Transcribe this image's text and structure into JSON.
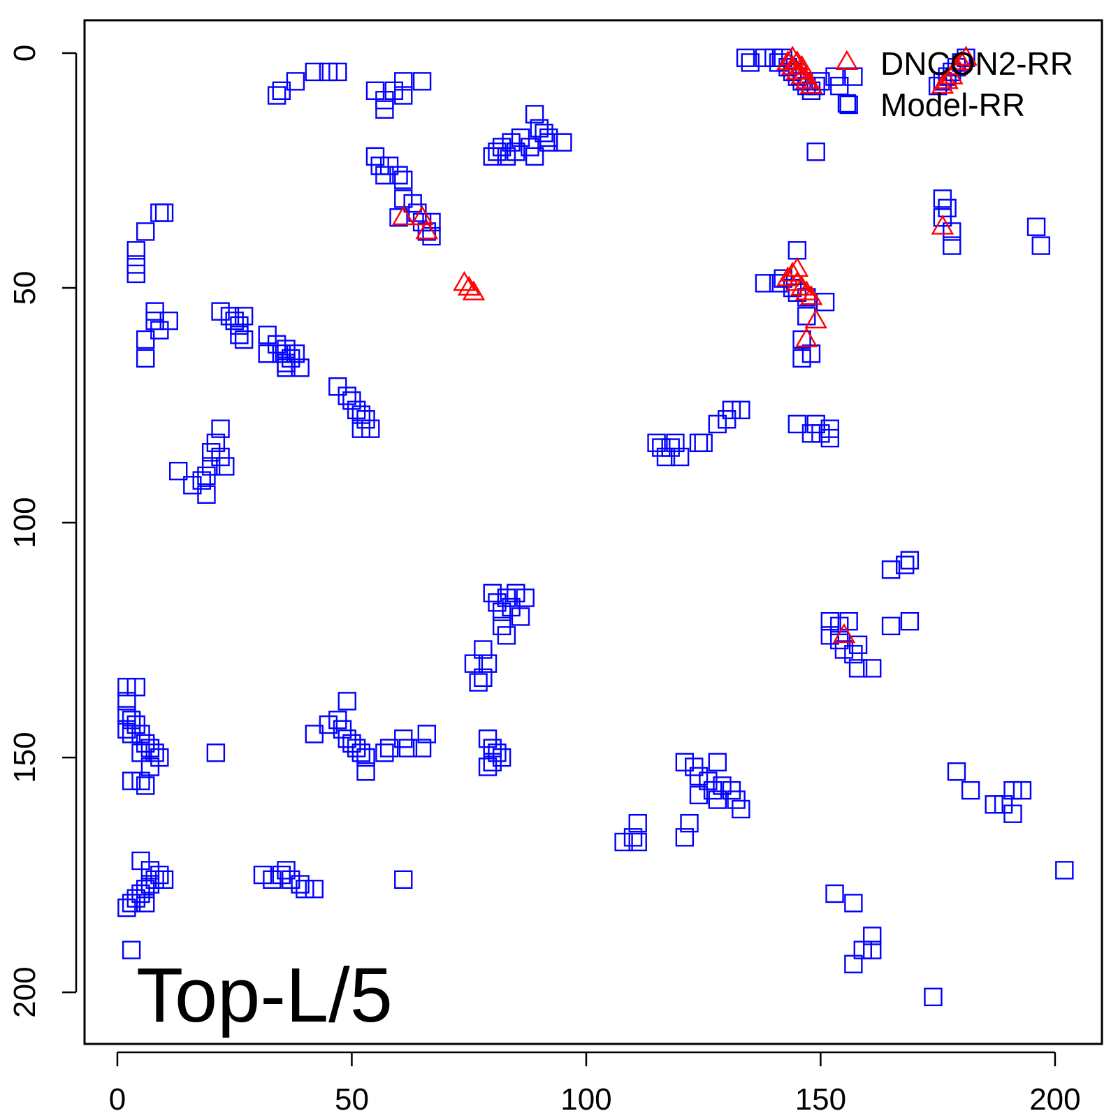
{
  "chart_data": {
    "type": "scatter",
    "title": "",
    "xlabel": "",
    "ylabel": "",
    "xlim": [
      -7,
      210
    ],
    "ylim": [
      -7,
      211
    ],
    "y_reversed": true,
    "xticks": [
      0,
      50,
      100,
      150,
      200
    ],
    "yticks": [
      0,
      50,
      100,
      150,
      200
    ],
    "grid": false,
    "legend_position": "top-right",
    "annotation": "Top-L/5",
    "series": [
      {
        "name": "DNCON2-RR",
        "marker": "triangle",
        "color": "#ff0000",
        "points": [
          [
            143,
            2
          ],
          [
            144,
            1
          ],
          [
            144,
            3
          ],
          [
            145,
            4
          ],
          [
            146,
            5
          ],
          [
            146,
            3
          ],
          [
            147,
            6
          ],
          [
            148,
            7
          ],
          [
            145,
            2
          ],
          [
            177,
            6
          ],
          [
            178,
            5
          ],
          [
            179,
            3
          ],
          [
            180,
            2
          ],
          [
            181,
            1
          ],
          [
            176,
            7
          ],
          [
            61,
            35
          ],
          [
            65,
            35
          ],
          [
            66,
            38
          ],
          [
            74,
            49
          ],
          [
            75,
            50
          ],
          [
            76,
            51
          ],
          [
            176,
            37
          ],
          [
            143,
            48
          ],
          [
            144,
            47
          ],
          [
            145,
            49
          ],
          [
            146,
            50
          ],
          [
            147,
            51
          ],
          [
            148,
            52
          ],
          [
            145,
            46
          ],
          [
            149,
            57
          ],
          [
            147,
            61
          ],
          [
            155,
            124
          ]
        ]
      },
      {
        "name": "Model-RR",
        "marker": "square",
        "color": "#0000ff",
        "points": [
          [
            134,
            1
          ],
          [
            135,
            2
          ],
          [
            138,
            1
          ],
          [
            140,
            1
          ],
          [
            141,
            2
          ],
          [
            142,
            1
          ],
          [
            143,
            3
          ],
          [
            144,
            4
          ],
          [
            145,
            5
          ],
          [
            146,
            6
          ],
          [
            147,
            7
          ],
          [
            148,
            8
          ],
          [
            149,
            7
          ],
          [
            150,
            6
          ],
          [
            153,
            5
          ],
          [
            154,
            7
          ],
          [
            157,
            5
          ],
          [
            156,
            11
          ],
          [
            149,
            21
          ],
          [
            175,
            7
          ],
          [
            176,
            6
          ],
          [
            177,
            5
          ],
          [
            178,
            4
          ],
          [
            179,
            3
          ],
          [
            180,
            2
          ],
          [
            181,
            1
          ],
          [
            34,
            9
          ],
          [
            35,
            8
          ],
          [
            38,
            6
          ],
          [
            42,
            4
          ],
          [
            45,
            4
          ],
          [
            47,
            4
          ],
          [
            55,
            8
          ],
          [
            57,
            10
          ],
          [
            57,
            12
          ],
          [
            59,
            8
          ],
          [
            61,
            6
          ],
          [
            61,
            9
          ],
          [
            65,
            6
          ],
          [
            55,
            22
          ],
          [
            56,
            24
          ],
          [
            57,
            26
          ],
          [
            58,
            24
          ],
          [
            60,
            26
          ],
          [
            61,
            27
          ],
          [
            61,
            31
          ],
          [
            63,
            32
          ],
          [
            64,
            34
          ],
          [
            65,
            36
          ],
          [
            66,
            38
          ],
          [
            67,
            36
          ],
          [
            67,
            39
          ],
          [
            60,
            35
          ],
          [
            80,
            22
          ],
          [
            81,
            21
          ],
          [
            82,
            20
          ],
          [
            83,
            22
          ],
          [
            84,
            19
          ],
          [
            85,
            21
          ],
          [
            86,
            18
          ],
          [
            88,
            20
          ],
          [
            89,
            22
          ],
          [
            89,
            13
          ],
          [
            90,
            16
          ],
          [
            91,
            17
          ],
          [
            92,
            19
          ],
          [
            92,
            18
          ],
          [
            95,
            19
          ],
          [
            176,
            31
          ],
          [
            177,
            33
          ],
          [
            176,
            35
          ],
          [
            178,
            38
          ],
          [
            178,
            41
          ],
          [
            196,
            37
          ],
          [
            197,
            41
          ],
          [
            9,
            34
          ],
          [
            10,
            34
          ],
          [
            6,
            38
          ],
          [
            4,
            42
          ],
          [
            4,
            45
          ],
          [
            4,
            47
          ],
          [
            8,
            55
          ],
          [
            8,
            57
          ],
          [
            9,
            59
          ],
          [
            6,
            61
          ],
          [
            6,
            65
          ],
          [
            11,
            57
          ],
          [
            22,
            55
          ],
          [
            24,
            56
          ],
          [
            25,
            57
          ],
          [
            26,
            58
          ],
          [
            27,
            56
          ],
          [
            26,
            60
          ],
          [
            27,
            61
          ],
          [
            32,
            60
          ],
          [
            34,
            62
          ],
          [
            32,
            64
          ],
          [
            35,
            64
          ],
          [
            36,
            63
          ],
          [
            36,
            66
          ],
          [
            37,
            65
          ],
          [
            36,
            67
          ],
          [
            38,
            64
          ],
          [
            39,
            67
          ],
          [
            47,
            71
          ],
          [
            49,
            73
          ],
          [
            50,
            74
          ],
          [
            51,
            76
          ],
          [
            52,
            77
          ],
          [
            53,
            78
          ],
          [
            54,
            80
          ],
          [
            52,
            80
          ],
          [
            22,
            80
          ],
          [
            21,
            83
          ],
          [
            20,
            85
          ],
          [
            22,
            86
          ],
          [
            20,
            88
          ],
          [
            19,
            90
          ],
          [
            18,
            91
          ],
          [
            16,
            92
          ],
          [
            19,
            94
          ],
          [
            13,
            89
          ],
          [
            23,
            88
          ],
          [
            145,
            42
          ],
          [
            138,
            49
          ],
          [
            141,
            49
          ],
          [
            142,
            48
          ],
          [
            144,
            50
          ],
          [
            145,
            51
          ],
          [
            147,
            52
          ],
          [
            151,
            53
          ],
          [
            147,
            56
          ],
          [
            146,
            61
          ],
          [
            146,
            65
          ],
          [
            148,
            64
          ],
          [
            115,
            83
          ],
          [
            116,
            84
          ],
          [
            117,
            86
          ],
          [
            118,
            84
          ],
          [
            119,
            83
          ],
          [
            120,
            86
          ],
          [
            124,
            83
          ],
          [
            125,
            83
          ],
          [
            128,
            79
          ],
          [
            130,
            78
          ],
          [
            131,
            76
          ],
          [
            133,
            76
          ],
          [
            149,
            79
          ],
          [
            148,
            81
          ],
          [
            150,
            81
          ],
          [
            152,
            80
          ],
          [
            152,
            82
          ],
          [
            145,
            79
          ],
          [
            165,
            110
          ],
          [
            168,
            109
          ],
          [
            169,
            108
          ],
          [
            80,
            115
          ],
          [
            81,
            117
          ],
          [
            82,
            119
          ],
          [
            83,
            116
          ],
          [
            84,
            118
          ],
          [
            85,
            115
          ],
          [
            86,
            120
          ],
          [
            87,
            116
          ],
          [
            82,
            122
          ],
          [
            83,
            124
          ],
          [
            78,
            127
          ],
          [
            79,
            130
          ],
          [
            78,
            133
          ],
          [
            76,
            130
          ],
          [
            77,
            134
          ],
          [
            152,
            121
          ],
          [
            154,
            122
          ],
          [
            156,
            121
          ],
          [
            152,
            124
          ],
          [
            154,
            125
          ],
          [
            155,
            127
          ],
          [
            158,
            126
          ],
          [
            157,
            128
          ],
          [
            158,
            131
          ],
          [
            161,
            131
          ],
          [
            165,
            122
          ],
          [
            169,
            121
          ],
          [
            2,
            135
          ],
          [
            4,
            135
          ],
          [
            2,
            138
          ],
          [
            2,
            141
          ],
          [
            3,
            142
          ],
          [
            2,
            144
          ],
          [
            3,
            145
          ],
          [
            4,
            143
          ],
          [
            5,
            145
          ],
          [
            6,
            147
          ],
          [
            7,
            148
          ],
          [
            8,
            149
          ],
          [
            9,
            150
          ],
          [
            5,
            149
          ],
          [
            7,
            152
          ],
          [
            5,
            155
          ],
          [
            6,
            156
          ],
          [
            3,
            155
          ],
          [
            21,
            149
          ],
          [
            42,
            145
          ],
          [
            45,
            143
          ],
          [
            47,
            142
          ],
          [
            48,
            144
          ],
          [
            49,
            146
          ],
          [
            50,
            147
          ],
          [
            51,
            148
          ],
          [
            52,
            149
          ],
          [
            49,
            138
          ],
          [
            53,
            150
          ],
          [
            53,
            153
          ],
          [
            57,
            149
          ],
          [
            58,
            148
          ],
          [
            61,
            146
          ],
          [
            62,
            148
          ],
          [
            65,
            148
          ],
          [
            66,
            145
          ],
          [
            79,
            146
          ],
          [
            80,
            148
          ],
          [
            81,
            149
          ],
          [
            82,
            150
          ],
          [
            80,
            151
          ],
          [
            79,
            152
          ],
          [
            121,
            151
          ],
          [
            123,
            152
          ],
          [
            124,
            154
          ],
          [
            126,
            155
          ],
          [
            127,
            157
          ],
          [
            128,
            159
          ],
          [
            129,
            156
          ],
          [
            131,
            157
          ],
          [
            132,
            159
          ],
          [
            133,
            161
          ],
          [
            124,
            158
          ],
          [
            128,
            151
          ],
          [
            108,
            168
          ],
          [
            110,
            167
          ],
          [
            111,
            168
          ],
          [
            111,
            164
          ],
          [
            121,
            167
          ],
          [
            122,
            164
          ],
          [
            179,
            153
          ],
          [
            182,
            157
          ],
          [
            187,
            160
          ],
          [
            189,
            160
          ],
          [
            191,
            157
          ],
          [
            191,
            162
          ],
          [
            193,
            157
          ],
          [
            2,
            182
          ],
          [
            3,
            181
          ],
          [
            4,
            180
          ],
          [
            5,
            179
          ],
          [
            6,
            178
          ],
          [
            7,
            177
          ],
          [
            8,
            176
          ],
          [
            9,
            175
          ],
          [
            6,
            181
          ],
          [
            7,
            174
          ],
          [
            5,
            172
          ],
          [
            10,
            176
          ],
          [
            3,
            191
          ],
          [
            31,
            175
          ],
          [
            33,
            176
          ],
          [
            35,
            175
          ],
          [
            36,
            174
          ],
          [
            37,
            176
          ],
          [
            39,
            177
          ],
          [
            40,
            178
          ],
          [
            42,
            178
          ],
          [
            61,
            176
          ],
          [
            153,
            179
          ],
          [
            157,
            181
          ],
          [
            157,
            194
          ],
          [
            159,
            191
          ],
          [
            161,
            188
          ],
          [
            161,
            191
          ],
          [
            174,
            201
          ],
          [
            202,
            174
          ]
        ]
      }
    ]
  }
}
